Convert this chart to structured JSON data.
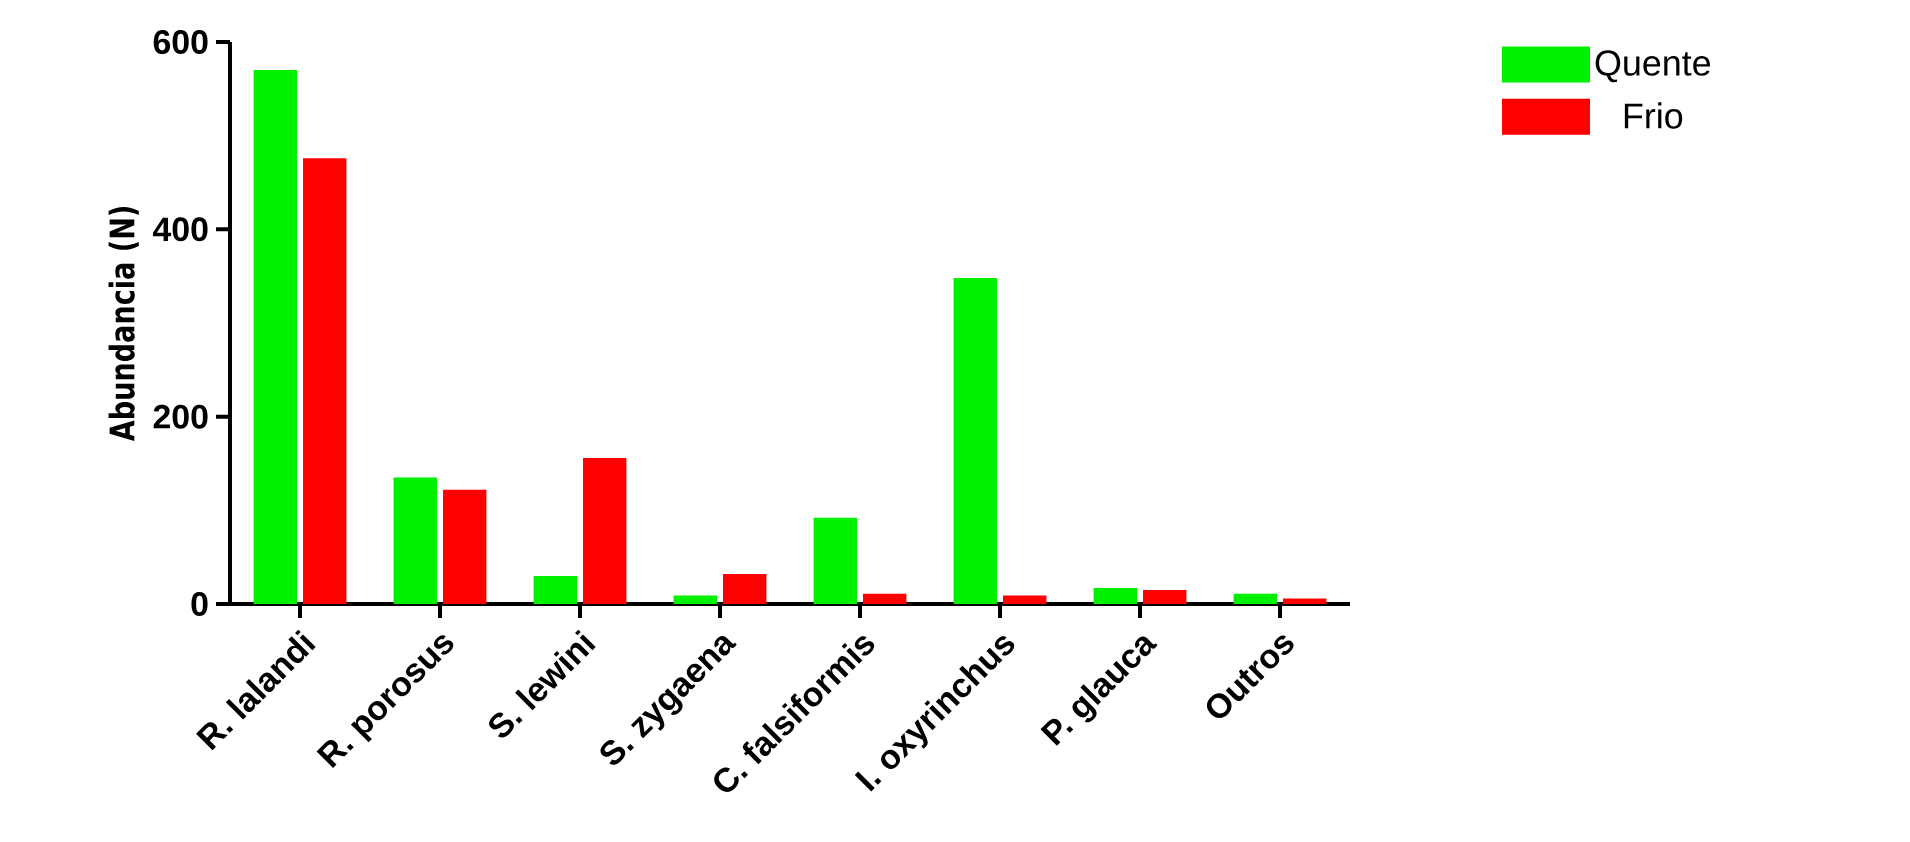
{
  "chart_data": {
    "type": "bar",
    "ylabel": "Abundancia (N)",
    "categories": [
      "R. lalandi",
      "R. porosus",
      "S. lewini",
      "S. zygaena",
      "C. falsiformis",
      "I. oxyrinchus",
      "P. glauca",
      "Outros"
    ],
    "series": [
      {
        "name": "Quente",
        "color": "#00f000",
        "values": [
          570,
          135,
          30,
          9,
          92,
          348,
          17,
          11
        ]
      },
      {
        "name": "Frio",
        "color": "#ff0000",
        "values": [
          476,
          122,
          156,
          32,
          11,
          9,
          15,
          6
        ]
      }
    ],
    "ylim": [
      0,
      600
    ],
    "yticks": [
      0,
      200,
      400,
      600
    ],
    "legend": "top right",
    "grid": false
  }
}
